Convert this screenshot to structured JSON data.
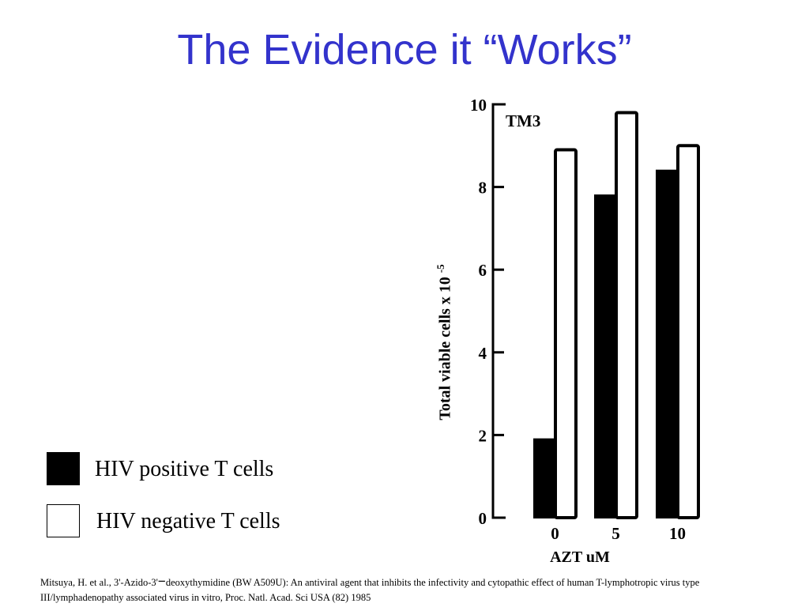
{
  "slide": {
    "title": "The Evidence it “Works”"
  },
  "legend": [
    {
      "label": "HIV positive T cells",
      "color": "#000000"
    },
    {
      "label": "HIV negative T cells",
      "color": "#ffffff"
    }
  ],
  "citation": {
    "text_before": "Mitsuya, H. et al., 3'-Azido-3'",
    "dash": "−",
    "text_after": "deoxythymidine (BW A509U): An antiviral agent that inhibits the infectivity and cytopathic effect of human T-lymphotropic virus type III/lymphadenopathy associated virus in vitro, Proc. Natl. Acad. Sci USA (82) 1985"
  },
  "chart_data": {
    "type": "bar",
    "panel_label": "TM3",
    "categories": [
      "0",
      "5",
      "10"
    ],
    "series": [
      {
        "name": "HIV positive T cells",
        "color": "#000000",
        "values": [
          1.9,
          7.8,
          8.4
        ]
      },
      {
        "name": "HIV negative T cells",
        "color": "#ffffff",
        "values": [
          8.9,
          9.8,
          9.0
        ]
      }
    ],
    "xlabel": "AZT uM",
    "ylabel": "Total viable cells x 10",
    "ylabel_exponent": "-5",
    "ylim": [
      0,
      10
    ],
    "yticks": [
      "0",
      "2",
      "4",
      "6",
      "8",
      "10"
    ],
    "grid": false
  }
}
